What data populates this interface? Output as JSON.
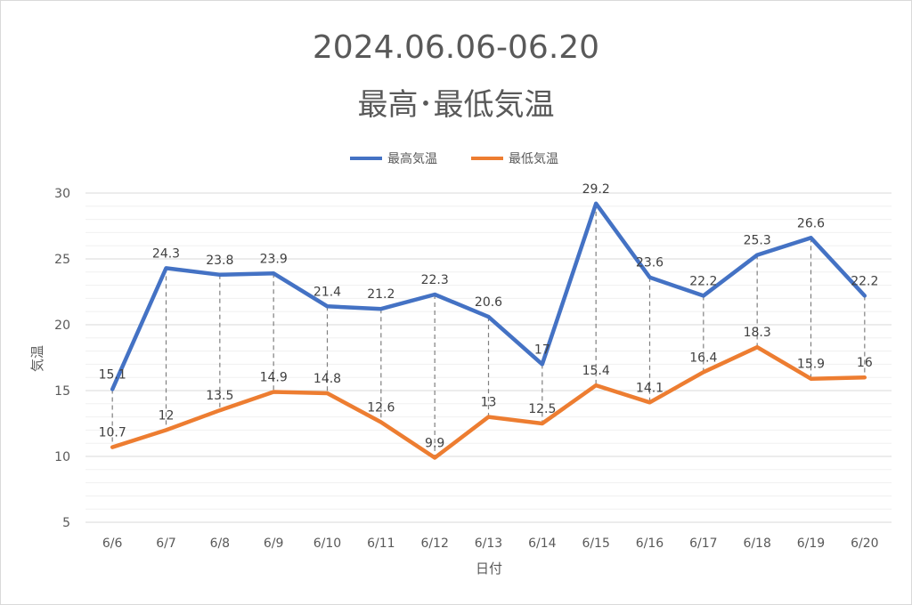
{
  "chart_data": {
    "type": "line",
    "title_line1": "2024.06.06-06.20",
    "title_line2": "最高･最低気温",
    "xlabel": "日付",
    "ylabel": "気温",
    "categories": [
      "6/6",
      "6/7",
      "6/8",
      "6/9",
      "6/10",
      "6/11",
      "6/12",
      "6/13",
      "6/14",
      "6/15",
      "6/16",
      "6/17",
      "6/18",
      "6/19",
      "6/20"
    ],
    "series": [
      {
        "name": "最高気温",
        "color": "#4472c4",
        "values": [
          15.1,
          24.3,
          23.8,
          23.9,
          21.4,
          21.2,
          22.3,
          20.6,
          17,
          29.2,
          23.6,
          22.2,
          25.3,
          26.6,
          22.2
        ]
      },
      {
        "name": "最低気温",
        "color": "#ed7d31",
        "values": [
          10.7,
          12,
          13.5,
          14.9,
          14.8,
          12.6,
          9.9,
          13,
          12.5,
          15.4,
          14.1,
          16.4,
          18.3,
          15.9,
          16
        ]
      }
    ],
    "ylim": [
      5,
      30
    ],
    "yticks": [
      5,
      10,
      15,
      20,
      25,
      30
    ],
    "grid": true,
    "drop_lines": true,
    "legend_position": "top"
  }
}
